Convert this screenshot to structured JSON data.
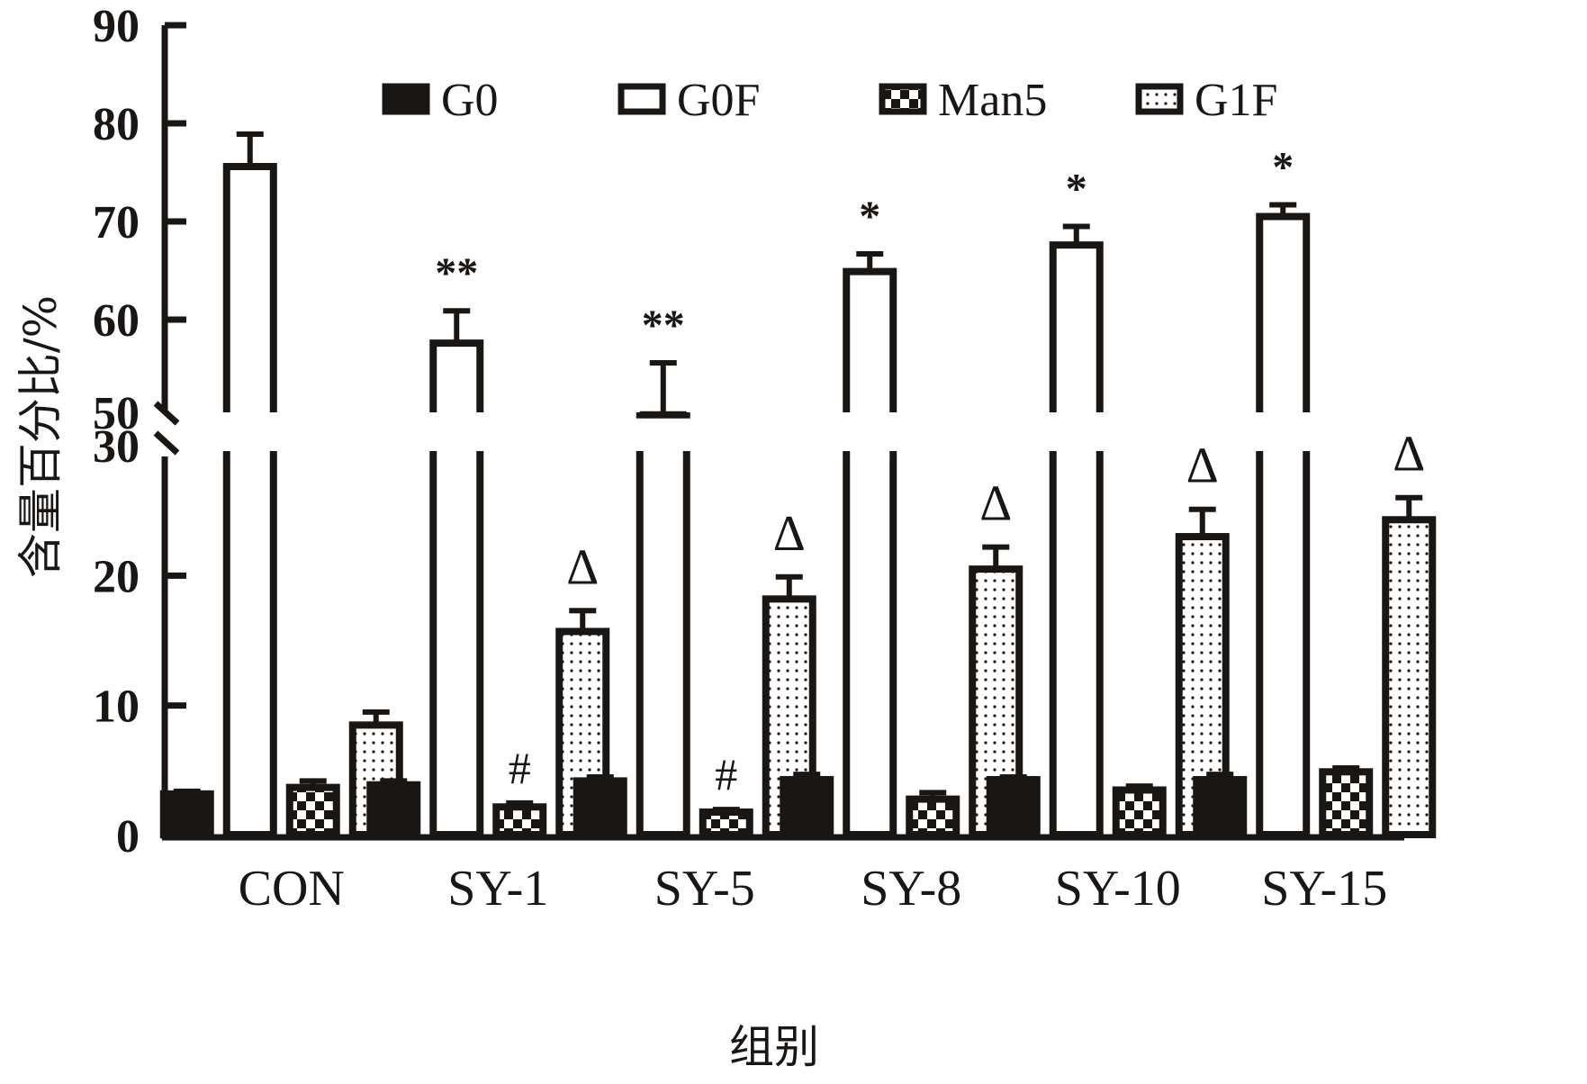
{
  "chart_data": {
    "type": "bar",
    "title": "",
    "xlabel": "组别",
    "ylabel": "含量百分比/%",
    "categories": [
      "CON",
      "SY-1",
      "SY-5",
      "SY-8",
      "SY-10",
      "SY-15"
    ],
    "y_axis": {
      "broken": true,
      "lower_segment": {
        "range": [
          0,
          30
        ],
        "ticks": [
          0,
          10,
          20,
          30
        ]
      },
      "upper_segment": {
        "range": [
          50,
          90
        ],
        "ticks": [
          50,
          60,
          70,
          80,
          90
        ]
      },
      "tick_labels": [
        "0",
        "10",
        "20",
        "30",
        "50",
        "60",
        "70",
        "80",
        "90"
      ]
    },
    "grid": false,
    "legend": {
      "position": "top-center",
      "entries": [
        "G0",
        "G0F",
        "Man5",
        "G1F"
      ]
    },
    "series": [
      {
        "name": "G0",
        "pattern": "solid-black",
        "values": [
          3.2,
          3.9,
          4.2,
          4.3,
          4.3,
          4.3
        ],
        "errors": [
          0.2,
          0.3,
          0.3,
          0.4,
          0.2,
          0.4
        ]
      },
      {
        "name": "G0F",
        "pattern": "white",
        "values": [
          75.6,
          57.6,
          50.3,
          64.9,
          67.6,
          70.5
        ],
        "errors": [
          3.3,
          3.3,
          5.3,
          1.8,
          1.9,
          1.2
        ]
      },
      {
        "name": "Man5",
        "pattern": "checkerboard",
        "values": [
          3.7,
          2.2,
          1.8,
          2.8,
          3.5,
          4.9
        ],
        "errors": [
          0.5,
          0.3,
          0.2,
          0.5,
          0.3,
          0.3
        ]
      },
      {
        "name": "G1F",
        "pattern": "dotted",
        "values": [
          8.5,
          15.7,
          18.2,
          20.5,
          23.0,
          24.3
        ],
        "errors": [
          1.0,
          1.6,
          1.7,
          1.7,
          2.1,
          1.7
        ]
      }
    ],
    "annotations": [
      {
        "category": "SY-1",
        "series": "G0F",
        "text": "**"
      },
      {
        "category": "SY-5",
        "series": "G0F",
        "text": "**"
      },
      {
        "category": "SY-8",
        "series": "G0F",
        "text": "*"
      },
      {
        "category": "SY-10",
        "series": "G0F",
        "text": "*"
      },
      {
        "category": "SY-15",
        "series": "G0F",
        "text": "*"
      },
      {
        "category": "SY-1",
        "series": "Man5",
        "text": "#"
      },
      {
        "category": "SY-5",
        "series": "Man5",
        "text": "#"
      },
      {
        "category": "SY-1",
        "series": "G1F",
        "text": "Δ"
      },
      {
        "category": "SY-5",
        "series": "G1F",
        "text": "Δ"
      },
      {
        "category": "SY-8",
        "series": "G1F",
        "text": "Δ"
      },
      {
        "category": "SY-10",
        "series": "G1F",
        "text": "Δ"
      },
      {
        "category": "SY-15",
        "series": "G1F",
        "text": "Δ"
      }
    ],
    "colors": {
      "ink": "#1a1614",
      "background": "#ffffff"
    }
  }
}
